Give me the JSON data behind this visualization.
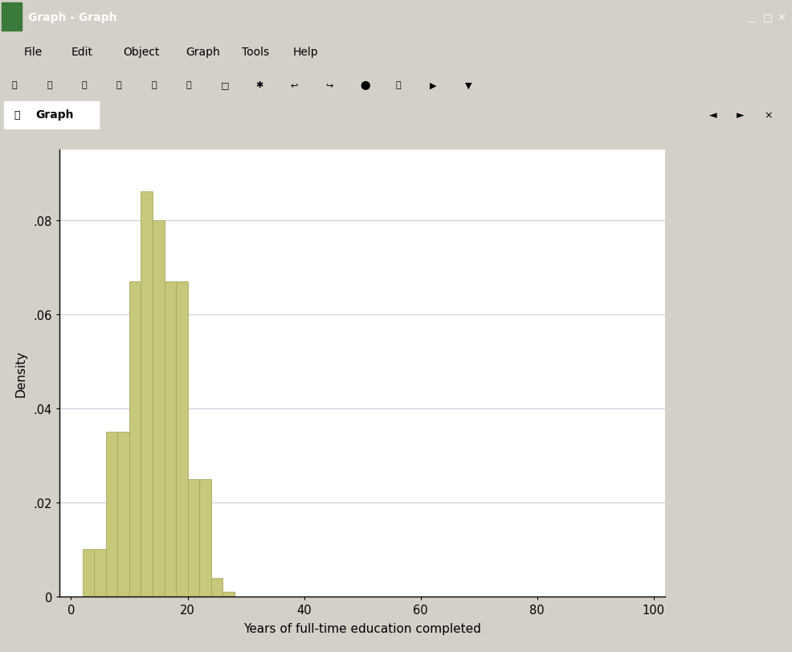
{
  "xlabel": "Years of full-time education completed",
  "ylabel": "Density",
  "bar_color": "#c8c87a",
  "bar_edgecolor": "#a8a860",
  "xlim": [
    -2,
    102
  ],
  "ylim": [
    0,
    0.095
  ],
  "xticks": [
    0,
    20,
    40,
    60,
    80,
    100
  ],
  "yticks": [
    0,
    0.02,
    0.04,
    0.06,
    0.08
  ],
  "ytick_labels": [
    "0",
    ".02",
    ".04",
    ".06",
    ".08"
  ],
  "bin_lefts": [
    2,
    4,
    6,
    8,
    10,
    12,
    14,
    16,
    18,
    20,
    22,
    24,
    26
  ],
  "bin_heights": [
    0.01,
    0.01,
    0.035,
    0.035,
    0.067,
    0.086,
    0.08,
    0.067,
    0.067,
    0.025,
    0.025,
    0.004,
    0.001
  ],
  "bin_width": 2,
  "plot_bg": "#eef2f8",
  "window_title": "Graph - Graph",
  "tab_text": "Graph",
  "menu_items": [
    "File",
    "Edit",
    "Object",
    "Graph",
    "Tools",
    "Help"
  ],
  "title_bar_color": "#0a246a",
  "title_bar_text_color": "#ffffff",
  "window_chrome_color": "#d4d0c8",
  "sidebar_color": "#808080",
  "grid_color": "#c8d0d8",
  "graph_panel_bg": "#d8dce8",
  "outer_bg": "#d8dce8"
}
